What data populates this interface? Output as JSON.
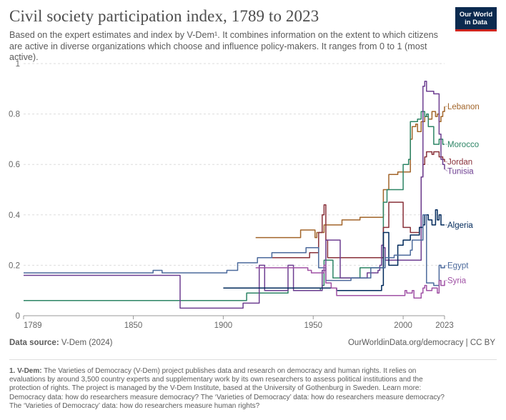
{
  "header": {
    "title": "Civil society participation index, 1789 to 2023",
    "subtitle": "Based on the expert estimates and index by V-Dem¹. It combines information on the extent to which citizens are active in diverse organizations which choose and influence policy-makers. It ranges from 0 to 1 (most active).",
    "logo_line1": "Our World",
    "logo_line2": "in Data"
  },
  "footer": {
    "source_label": "Data source:",
    "source_value": "V-Dem (2024)",
    "credit": "OurWorldinData.org/democracy | CC BY",
    "note_label": "1. V-Dem:",
    "note_text": "The Varieties of Democracy (V-Dem) project publishes data and research on democracy and human rights. It relies on evaluations by around 3,500 country experts and supplementary work by its own researchers to assess political institutions and the protection of rights. The project is managed by the V-Dem Institute, based at the University of Gothenburg in Sweden. Learn more: Democracy data: how do researchers measure democracy? The ‘Varieties of Democracy’ data: how do researchers measure democracy? The ‘Varieties of Democracy’ data: how do researchers measure human rights?"
  },
  "chart_data": {
    "type": "line",
    "title": "Civil society participation index, 1789 to 2023",
    "xlim": [
      1789,
      2023
    ],
    "ylim": [
      0,
      1
    ],
    "x_ticks": [
      1789,
      1850,
      1900,
      1950,
      2000,
      2023
    ],
    "y_ticks": [
      0,
      0.2,
      0.4,
      0.6,
      0.8,
      1
    ],
    "y_tick_labels": [
      "0",
      "0.2",
      "0.4",
      "0.6",
      "0.8",
      "1"
    ],
    "grid": "horizontal dashed",
    "series": [
      {
        "name": "Lebanon",
        "color": "#a2652a",
        "points": [
          [
            1918,
            0.31
          ],
          [
            1942,
            0.31
          ],
          [
            1943,
            0.34
          ],
          [
            1950,
            0.34
          ],
          [
            1951,
            0.31
          ],
          [
            1952,
            0.33
          ],
          [
            1954,
            0.33
          ],
          [
            1956,
            0.36
          ],
          [
            1965,
            0.36
          ],
          [
            1966,
            0.38
          ],
          [
            1975,
            0.38
          ],
          [
            1976,
            0.39
          ],
          [
            1988,
            0.39
          ],
          [
            1989,
            0.5
          ],
          [
            1991,
            0.5
          ],
          [
            1992,
            0.56
          ],
          [
            1996,
            0.56
          ],
          [
            1997,
            0.57
          ],
          [
            2000,
            0.57
          ],
          [
            2004,
            0.7
          ],
          [
            2005,
            0.75
          ],
          [
            2007,
            0.76
          ],
          [
            2008,
            0.73
          ],
          [
            2010,
            0.77
          ],
          [
            2012,
            0.79
          ],
          [
            2014,
            0.78
          ],
          [
            2016,
            0.81
          ],
          [
            2018,
            0.79
          ],
          [
            2019,
            0.8
          ],
          [
            2020,
            0.77
          ],
          [
            2021,
            0.79
          ],
          [
            2022,
            0.81
          ],
          [
            2023,
            0.83
          ]
        ]
      },
      {
        "name": "Morocco",
        "color": "#2c8465",
        "points": [
          [
            1789,
            0.06
          ],
          [
            1912,
            0.06
          ],
          [
            1913,
            0.09
          ],
          [
            1935,
            0.09
          ],
          [
            1936,
            0.11
          ],
          [
            1953,
            0.11
          ],
          [
            1954,
            0.1
          ],
          [
            1955,
            0.12
          ],
          [
            1956,
            0.22
          ],
          [
            1960,
            0.22
          ],
          [
            1961,
            0.15
          ],
          [
            1975,
            0.15
          ],
          [
            1976,
            0.19
          ],
          [
            1988,
            0.19
          ],
          [
            1989,
            0.45
          ],
          [
            1991,
            0.5
          ],
          [
            1999,
            0.5
          ],
          [
            2000,
            0.6
          ],
          [
            2003,
            0.62
          ],
          [
            2004,
            0.77
          ],
          [
            2008,
            0.78
          ],
          [
            2010,
            0.81
          ],
          [
            2012,
            0.79
          ],
          [
            2013,
            0.8
          ],
          [
            2014,
            0.75
          ],
          [
            2016,
            0.75
          ],
          [
            2017,
            0.68
          ],
          [
            2019,
            0.68
          ],
          [
            2020,
            0.7
          ],
          [
            2021,
            0.7
          ],
          [
            2022,
            0.68
          ],
          [
            2023,
            0.68
          ]
        ]
      },
      {
        "name": "Jordan",
        "color": "#883039",
        "points": [
          [
            1921,
            0.23
          ],
          [
            1946,
            0.23
          ],
          [
            1948,
            0.25
          ],
          [
            1952,
            0.25
          ],
          [
            1953,
            0.33
          ],
          [
            1955,
            0.4
          ],
          [
            1956,
            0.44
          ],
          [
            1957,
            0.3
          ],
          [
            1958,
            0.23
          ],
          [
            1988,
            0.23
          ],
          [
            1989,
            0.35
          ],
          [
            1992,
            0.45
          ],
          [
            1999,
            0.45
          ],
          [
            2000,
            0.35
          ],
          [
            2004,
            0.33
          ],
          [
            2008,
            0.33
          ],
          [
            2009,
            0.35
          ],
          [
            2010,
            0.55
          ],
          [
            2011,
            0.6
          ],
          [
            2012,
            0.63
          ],
          [
            2013,
            0.65
          ],
          [
            2016,
            0.64
          ],
          [
            2017,
            0.65
          ],
          [
            2019,
            0.65
          ],
          [
            2020,
            0.63
          ],
          [
            2022,
            0.62
          ],
          [
            2023,
            0.61
          ]
        ]
      },
      {
        "name": "Tunisia",
        "color": "#6d3e91",
        "points": [
          [
            1789,
            0.16
          ],
          [
            1865,
            0.16
          ],
          [
            1866,
            0.16
          ],
          [
            1874,
            0.16
          ],
          [
            1876,
            0.03
          ],
          [
            1910,
            0.03
          ],
          [
            1911,
            0.05
          ],
          [
            1919,
            0.05
          ],
          [
            1920,
            0.2
          ],
          [
            1922,
            0.2
          ],
          [
            1923,
            0.1
          ],
          [
            1935,
            0.1
          ],
          [
            1936,
            0.2
          ],
          [
            1938,
            0.2
          ],
          [
            1939,
            0.1
          ],
          [
            1953,
            0.1
          ],
          [
            1955,
            0.18
          ],
          [
            1957,
            0.3
          ],
          [
            1964,
            0.3
          ],
          [
            1965,
            0.15
          ],
          [
            1975,
            0.15
          ],
          [
            1980,
            0.17
          ],
          [
            1986,
            0.18
          ],
          [
            1987,
            0.2
          ],
          [
            1988,
            0.28
          ],
          [
            1989,
            0.27
          ],
          [
            1990,
            0.22
          ],
          [
            2008,
            0.22
          ],
          [
            2010,
            0.55
          ],
          [
            2011,
            0.91
          ],
          [
            2012,
            0.93
          ],
          [
            2013,
            0.89
          ],
          [
            2016,
            0.89
          ],
          [
            2017,
            0.88
          ],
          [
            2019,
            0.88
          ],
          [
            2020,
            0.72
          ],
          [
            2021,
            0.62
          ],
          [
            2022,
            0.6
          ],
          [
            2023,
            0.58
          ]
        ]
      },
      {
        "name": "Algeria",
        "color": "#00295b",
        "points": [
          [
            1900,
            0.11
          ],
          [
            1962,
            0.11
          ],
          [
            1963,
            0.1
          ],
          [
            1975,
            0.1
          ],
          [
            1976,
            0.1
          ],
          [
            1987,
            0.1
          ],
          [
            1988,
            0.12
          ],
          [
            1989,
            0.33
          ],
          [
            1991,
            0.33
          ],
          [
            1992,
            0.2
          ],
          [
            1995,
            0.2
          ],
          [
            1997,
            0.28
          ],
          [
            2000,
            0.3
          ],
          [
            2004,
            0.32
          ],
          [
            2008,
            0.32
          ],
          [
            2009,
            0.35
          ],
          [
            2011,
            0.36
          ],
          [
            2012,
            0.4
          ],
          [
            2014,
            0.38
          ],
          [
            2016,
            0.36
          ],
          [
            2017,
            0.36
          ],
          [
            2018,
            0.42
          ],
          [
            2019,
            0.38
          ],
          [
            2020,
            0.4
          ],
          [
            2021,
            0.36
          ],
          [
            2023,
            0.36
          ]
        ]
      },
      {
        "name": "Egypt",
        "color": "#4c6a9c",
        "points": [
          [
            1789,
            0.17
          ],
          [
            1860,
            0.17
          ],
          [
            1861,
            0.18
          ],
          [
            1865,
            0.18
          ],
          [
            1866,
            0.17
          ],
          [
            1900,
            0.17
          ],
          [
            1902,
            0.18
          ],
          [
            1907,
            0.18
          ],
          [
            1908,
            0.21
          ],
          [
            1918,
            0.21
          ],
          [
            1919,
            0.23
          ],
          [
            1926,
            0.23
          ],
          [
            1927,
            0.25
          ],
          [
            1937,
            0.25
          ],
          [
            1938,
            0.25
          ],
          [
            1945,
            0.25
          ],
          [
            1946,
            0.27
          ],
          [
            1952,
            0.27
          ],
          [
            1953,
            0.19
          ],
          [
            1956,
            0.19
          ],
          [
            1957,
            0.14
          ],
          [
            1970,
            0.14
          ],
          [
            1971,
            0.15
          ],
          [
            1980,
            0.15
          ],
          [
            1982,
            0.19
          ],
          [
            1988,
            0.19
          ],
          [
            1990,
            0.23
          ],
          [
            1995,
            0.24
          ],
          [
            2004,
            0.26
          ],
          [
            2005,
            0.3
          ],
          [
            2010,
            0.3
          ],
          [
            2011,
            0.4
          ],
          [
            2012,
            0.4
          ],
          [
            2013,
            0.13
          ],
          [
            2014,
            0.13
          ],
          [
            2016,
            0.13
          ],
          [
            2017,
            0.12
          ],
          [
            2019,
            0.12
          ],
          [
            2020,
            0.2
          ],
          [
            2021,
            0.19
          ],
          [
            2023,
            0.2
          ]
        ]
      },
      {
        "name": "Syria",
        "color": "#a052a5",
        "points": [
          [
            1918,
            0.19
          ],
          [
            1946,
            0.19
          ],
          [
            1947,
            0.18
          ],
          [
            1949,
            0.17
          ],
          [
            1950,
            0.17
          ],
          [
            1953,
            0.17
          ],
          [
            1955,
            0.17
          ],
          [
            1956,
            0.2
          ],
          [
            1957,
            0.13
          ],
          [
            1960,
            0.11
          ],
          [
            1963,
            0.08
          ],
          [
            2000,
            0.08
          ],
          [
            2001,
            0.1
          ],
          [
            2002,
            0.09
          ],
          [
            2005,
            0.1
          ],
          [
            2006,
            0.07
          ],
          [
            2009,
            0.07
          ],
          [
            2010,
            0.09
          ],
          [
            2011,
            0.11
          ],
          [
            2012,
            0.12
          ],
          [
            2013,
            0.1
          ],
          [
            2016,
            0.11
          ],
          [
            2019,
            0.09
          ],
          [
            2020,
            0.14
          ],
          [
            2021,
            0.12
          ],
          [
            2023,
            0.14
          ]
        ]
      }
    ]
  }
}
